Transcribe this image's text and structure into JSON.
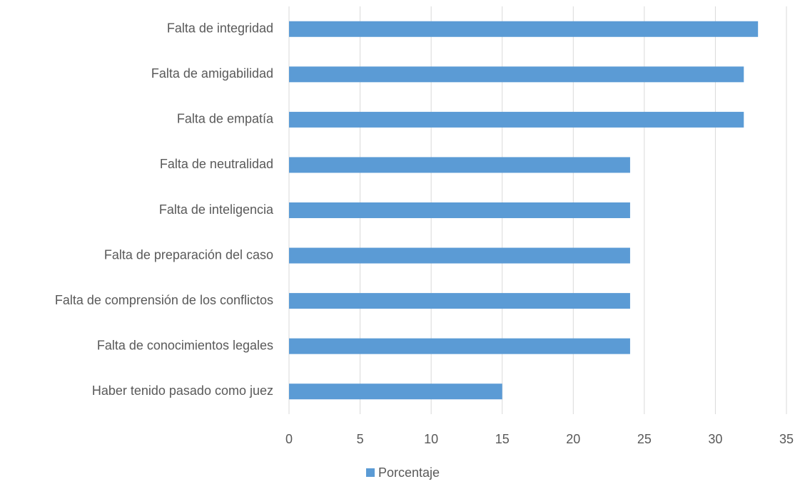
{
  "chart_data": {
    "type": "bar",
    "orientation": "horizontal",
    "categories": [
      "Falta de integridad",
      "Falta de amigabilidad",
      "Falta de empatía",
      "Falta de neutralidad",
      "Falta de inteligencia",
      "Falta de preparación del caso",
      "Falta de comprensión de los conflictos",
      "Falta de conocimientos legales",
      "Haber tenido pasado como juez"
    ],
    "series": [
      {
        "name": "Porcentaje",
        "color": "#5b9bd5",
        "values": [
          33,
          32,
          32,
          24,
          24,
          24,
          24,
          24,
          15
        ]
      }
    ],
    "xlim": [
      0,
      35
    ],
    "xticks": [
      0,
      5,
      10,
      15,
      20,
      25,
      30,
      35
    ],
    "grid": true,
    "legend": "bottom"
  }
}
